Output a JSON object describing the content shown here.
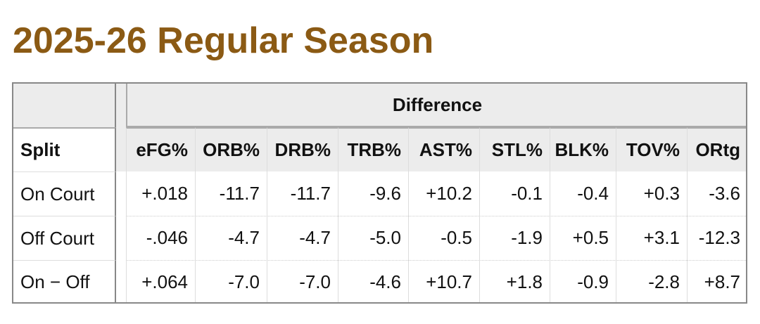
{
  "title": "2025-26 Regular Season",
  "group_header": "Difference",
  "split_header": "Split",
  "columns": [
    "eFG%",
    "ORB%",
    "DRB%",
    "TRB%",
    "AST%",
    "STL%",
    "BLK%",
    "TOV%",
    "ORtg"
  ],
  "rows": [
    {
      "split": "On Court",
      "values": [
        "+.018",
        "-11.7",
        "-11.7",
        "-9.6",
        "+10.2",
        "-0.1",
        "-0.4",
        "+0.3",
        "-3.6"
      ]
    },
    {
      "split": "Off Court",
      "values": [
        "-.046",
        "-4.7",
        "-4.7",
        "-5.0",
        "-0.5",
        "-1.9",
        "+0.5",
        "+3.1",
        "-12.3"
      ]
    },
    {
      "split": "On − Off",
      "values": [
        "+.064",
        "-7.0",
        "-7.0",
        "-4.6",
        "+10.7",
        "+1.8",
        "-0.9",
        "-2.8",
        "+8.7"
      ]
    }
  ]
}
